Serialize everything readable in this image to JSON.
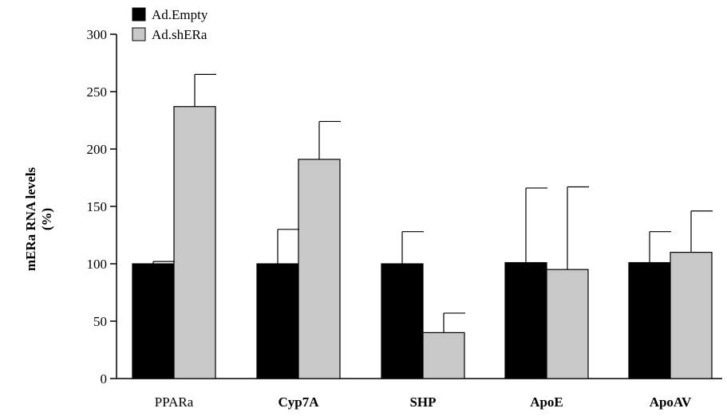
{
  "chart_data": {
    "type": "bar",
    "title": "",
    "xlabel": "",
    "ylabel_line1": "mERa RNA levels",
    "ylabel_line2": "(%)",
    "ylim": [
      0,
      300
    ],
    "yticks": [
      0,
      50,
      100,
      150,
      200,
      250,
      300
    ],
    "categories": [
      "PPARa",
      "Cyp7A",
      "SHP",
      "ApoE",
      "ApoAV"
    ],
    "categories_bold": [
      false,
      true,
      true,
      true,
      true
    ],
    "grid": false,
    "legend_position": "top-left",
    "series": [
      {
        "name": "Ad.Empty",
        "color": "#000000",
        "values": [
          100,
          100,
          100,
          101,
          101
        ],
        "errors": [
          2,
          30,
          28,
          65,
          27
        ]
      },
      {
        "name": "Ad.shERa",
        "color": "#c8c8c8",
        "values": [
          237,
          191,
          40,
          95,
          110
        ],
        "errors": [
          28,
          33,
          17,
          72,
          36
        ]
      }
    ]
  }
}
